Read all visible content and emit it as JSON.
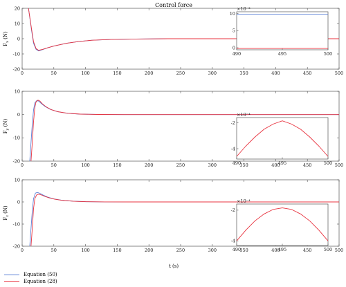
{
  "figure": {
    "title": "Control force",
    "xlabel": "t (s)",
    "legend": [
      {
        "label": "Equation (50)",
        "color": "#5a7fd6"
      },
      {
        "label": "Equation (28)",
        "color": "#e8333f"
      }
    ]
  },
  "chart_data": [
    {
      "type": "line",
      "ylabel": "Fx (N)",
      "xlim": [
        0,
        500
      ],
      "ylim": [
        -20,
        20
      ],
      "xticks": [
        0,
        50,
        100,
        150,
        200,
        250,
        300,
        350,
        400,
        450,
        500
      ],
      "yticks": [
        -20,
        -10,
        0,
        10,
        20
      ],
      "grid": false,
      "series": [
        {
          "name": "Equation (50)",
          "color": "#5a7fd6",
          "x": [
            10,
            15,
            18,
            22,
            26,
            32,
            40,
            50,
            70,
            90,
            110,
            140,
            180,
            230,
            300,
            500
          ],
          "y": [
            20,
            5,
            -3,
            -7,
            -8,
            -7.2,
            -6,
            -4.8,
            -3,
            -1.8,
            -1,
            -0.5,
            -0.2,
            0,
            0,
            0
          ]
        },
        {
          "name": "Equation (28)",
          "color": "#e8333f",
          "x": [
            10,
            15,
            18,
            22,
            26,
            32,
            40,
            50,
            70,
            90,
            110,
            140,
            180,
            230,
            300,
            500
          ],
          "y": [
            20,
            6,
            -2,
            -6.5,
            -7.6,
            -7,
            -6,
            -4.8,
            -3,
            -1.8,
            -1,
            -0.5,
            -0.2,
            0,
            0,
            0
          ]
        }
      ],
      "inset": {
        "xlim": [
          490,
          500
        ],
        "xticks": [
          490,
          495,
          500
        ],
        "ytick_labels": [
          "0",
          "5",
          "10"
        ],
        "ytick_values": [
          0,
          5,
          10
        ],
        "ylim": [
          -0.6,
          10.5
        ],
        "exponent": "×10⁻³",
        "series": [
          {
            "color": "#5a7fd6",
            "y": 9.8
          },
          {
            "color": "#e8333f",
            "y": -0.2
          }
        ]
      }
    },
    {
      "type": "line",
      "ylabel": "Fy (N)",
      "xlim": [
        0,
        500
      ],
      "ylim": [
        -20,
        10
      ],
      "xticks": [
        0,
        50,
        100,
        150,
        200,
        250,
        300,
        350,
        400,
        450,
        500
      ],
      "yticks": [
        -20,
        -10,
        0,
        10
      ],
      "grid": false,
      "series": [
        {
          "name": "Equation (50)",
          "color": "#5a7fd6",
          "x": [
            12,
            14,
            16,
            18,
            20,
            23,
            26,
            30,
            36,
            44,
            55,
            70,
            90,
            120,
            160,
            220,
            300,
            500
          ],
          "y": [
            -20,
            -12,
            -4,
            2,
            5,
            6,
            5.8,
            4.8,
            3.5,
            2.3,
            1.3,
            0.6,
            0.2,
            0.05,
            0,
            0,
            0,
            0
          ]
        },
        {
          "name": "Equation (28)",
          "color": "#e8333f",
          "x": [
            14,
            16,
            18,
            20,
            22,
            25,
            28,
            32,
            38,
            46,
            57,
            72,
            92,
            120,
            160,
            220,
            300,
            500
          ],
          "y": [
            -20,
            -12,
            -3,
            3,
            5.5,
            6.2,
            5.8,
            4.6,
            3.3,
            2.1,
            1.2,
            0.55,
            0.2,
            0.05,
            0,
            0,
            0,
            0
          ]
        }
      ],
      "inset": {
        "xlim": [
          490,
          500
        ],
        "xticks": [
          490,
          495,
          500
        ],
        "ytick_labels": [
          "-2",
          "-4"
        ],
        "ytick_values": [
          -2,
          -4
        ],
        "ylim": [
          -4.8,
          -1.6
        ],
        "exponent": "×10⁻⁴",
        "curve": {
          "color": "#e8333f",
          "x": [
            490,
            491,
            492,
            493,
            494,
            495,
            496,
            497,
            498,
            499,
            500
          ],
          "y": [
            -4.6,
            -3.8,
            -3.1,
            -2.5,
            -2.1,
            -1.85,
            -2.1,
            -2.5,
            -3.1,
            -3.8,
            -4.6
          ]
        }
      }
    },
    {
      "type": "line",
      "ylabel": "Fz (N)",
      "xlim": [
        0,
        500
      ],
      "ylim": [
        -20,
        10
      ],
      "xticks": [
        0,
        50,
        100,
        150,
        200,
        250,
        300,
        350,
        400,
        450,
        500
      ],
      "yticks": [
        -20,
        -10,
        0,
        10
      ],
      "grid": false,
      "series": [
        {
          "name": "Equation (50)",
          "color": "#5a7fd6",
          "x": [
            12,
            14,
            16,
            18,
            21,
            24,
            28,
            33,
            40,
            50,
            62,
            80,
            100,
            130,
            170,
            230,
            300,
            500
          ],
          "y": [
            -20,
            -12,
            -4,
            1.5,
            4,
            4.3,
            3.9,
            3.1,
            2.2,
            1.4,
            0.8,
            0.35,
            0.12,
            0.03,
            0,
            0,
            0,
            0
          ]
        },
        {
          "name": "Equation (28)",
          "color": "#e8333f",
          "x": [
            14,
            16,
            18,
            20,
            23,
            26,
            30,
            35,
            42,
            52,
            64,
            82,
            102,
            130,
            170,
            230,
            300,
            500
          ],
          "y": [
            -20,
            -12,
            -3,
            1.5,
            3.2,
            3.5,
            3.2,
            2.6,
            1.9,
            1.2,
            0.7,
            0.3,
            0.1,
            0.02,
            0,
            0,
            0,
            0
          ]
        }
      ],
      "inset": {
        "xlim": [
          490,
          500
        ],
        "xticks": [
          490,
          495,
          500
        ],
        "ytick_labels": [
          "-2",
          "-4"
        ],
        "ytick_values": [
          -2,
          -4
        ],
        "ylim": [
          -4.3,
          -1.6
        ],
        "exponent": "×10⁻⁴",
        "curve": {
          "color": "#e8333f",
          "x": [
            490,
            491,
            492,
            493,
            494,
            495,
            496,
            497,
            498,
            499,
            500
          ],
          "y": [
            -4.0,
            -3.3,
            -2.7,
            -2.25,
            -1.95,
            -1.85,
            -1.95,
            -2.25,
            -2.7,
            -3.3,
            -4.0
          ]
        }
      }
    }
  ]
}
